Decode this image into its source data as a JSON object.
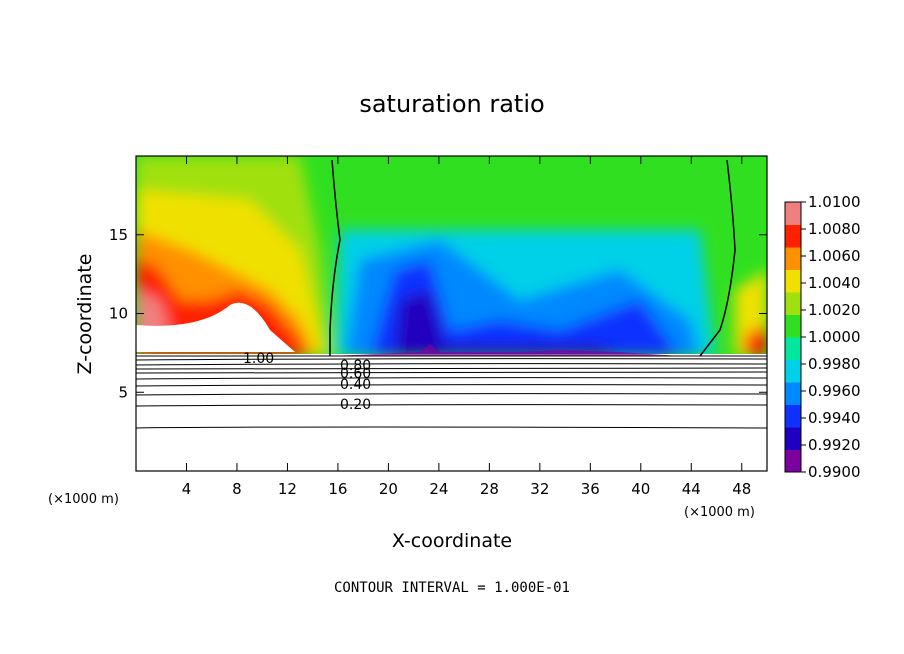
{
  "chart_data": {
    "type": "heatmap",
    "title": "saturation ratio",
    "xlabel": "X-coordinate",
    "ylabel": "Z-coordinate",
    "x_unit": "(×1000 m)",
    "xlim": [
      0,
      50
    ],
    "ylim": [
      0,
      20
    ],
    "x_ticks": [
      4,
      8,
      12,
      16,
      20,
      24,
      28,
      32,
      36,
      40,
      44,
      48
    ],
    "y_ticks": [
      5,
      10,
      15
    ],
    "colorbar": {
      "min": 0.99,
      "max": 1.01,
      "tick_values": [
        0.99,
        0.992,
        0.994,
        0.996,
        0.998,
        1.0,
        1.002,
        1.004,
        1.006,
        1.008,
        1.01
      ],
      "tick_labels": [
        "0.9900",
        "0.9920",
        "0.9940",
        "0.9960",
        "0.9980",
        "1.0000",
        "1.0020",
        "1.0040",
        "1.0060",
        "1.0080",
        "1.0100"
      ],
      "colors": [
        "#7b00a0",
        "#2000c0",
        "#1030ff",
        "#0088ff",
        "#00d0e8",
        "#00e8a0",
        "#30e020",
        "#a0e010",
        "#f0e000",
        "#ff9000",
        "#ff2000",
        "#f08080"
      ]
    },
    "unsaturated_contours": {
      "interval": 0.1,
      "labeled_levels": [
        {
          "value": 1.0,
          "label": "1.00"
        },
        {
          "value": 0.8,
          "label": "0.80"
        },
        {
          "value": 0.6,
          "label": "0.60"
        },
        {
          "value": 0.4,
          "label": "0.40"
        },
        {
          "value": 0.2,
          "label": "0.20"
        }
      ]
    },
    "note": "CONTOUR INTERVAL = 1.000E-01"
  }
}
